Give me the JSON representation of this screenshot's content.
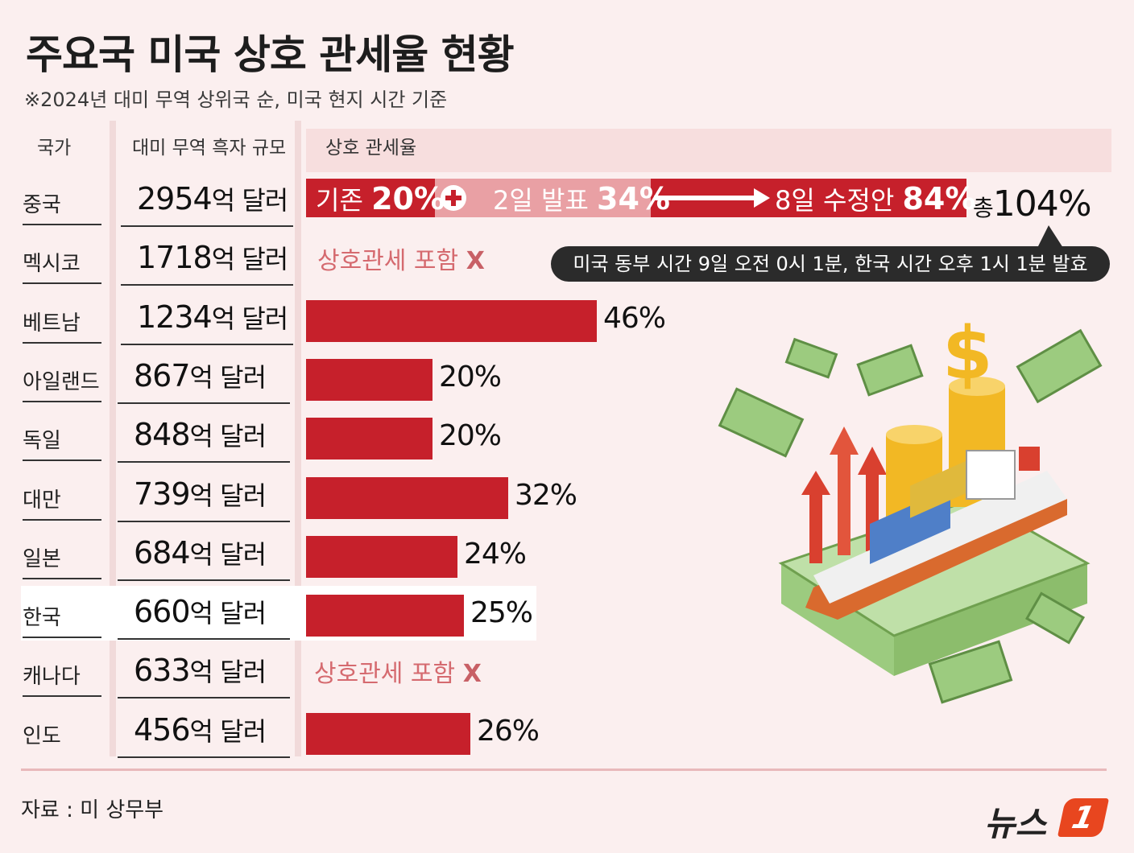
{
  "title": "주요국 미국 상호 관세율 현황",
  "subtitle": "※2024년 대미 무역 상위국 순, 미국 현지 시간 기준",
  "headers": {
    "country": "국가",
    "deficit": "대미 무역 흑자 규모",
    "tariff": "상호 관세율"
  },
  "amount_unit": "억 달러",
  "excluded_label": "상호관세 포함",
  "excluded_mark": "X",
  "china": {
    "base_label": "기존",
    "base_value": "20%",
    "announce_label": "2일 발표",
    "announce_value": "34%",
    "revised_label": "8일 수정안",
    "revised_value": "84%",
    "total_label": "총",
    "total_value": "104%",
    "note": "미국 동부 시간 9일 오전 0시 1분, 한국 시간 오후 1시 1분 발효"
  },
  "source": "자료 : 미 상무부",
  "logo_text": "뉴스",
  "logo_mark": "1",
  "colors": {
    "bar": "#c6202b",
    "background": "#fbefef",
    "excluded_text": "#d56a6f"
  },
  "chart_data": {
    "type": "bar",
    "title": "주요국 미국 상호 관세율 현황",
    "xlabel": "상호 관세율",
    "ylabel": "국가",
    "ylim": [
      0,
      50
    ],
    "countries": [
      "중국",
      "멕시코",
      "베트남",
      "아일랜드",
      "독일",
      "대만",
      "일본",
      "한국",
      "캐나다",
      "인도"
    ],
    "deficits": [
      2954,
      1718,
      1234,
      867,
      848,
      739,
      684,
      660,
      633,
      456
    ],
    "tariffs": [
      null,
      null,
      46,
      20,
      20,
      32,
      24,
      25,
      null,
      26
    ],
    "tariff_labels": [
      "",
      "",
      "46%",
      "20%",
      "20%",
      "32%",
      "24%",
      "25%",
      "",
      "26%"
    ],
    "china_tariff_total": 104
  }
}
